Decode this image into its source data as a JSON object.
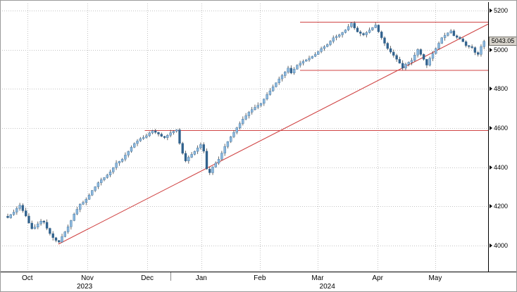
{
  "chart_data": {
    "type": "candlestick",
    "title": "",
    "legend": "none",
    "grid": "dotted",
    "y_axis": {
      "ticks": [
        5200,
        5000,
        4800,
        4600,
        4400,
        4200,
        4000
      ],
      "ylim": [
        3865,
        5250
      ],
      "side": "right"
    },
    "x_axis": {
      "months": [
        {
          "label": "Oct",
          "day": 6.5
        },
        {
          "label": "Nov",
          "day": 26.4
        },
        {
          "label": "Dec",
          "day": 46.3
        },
        {
          "label": "Jan",
          "day": 64.2
        },
        {
          "label": "Feb",
          "day": 83.6
        },
        {
          "label": "Mar",
          "day": 102.8
        },
        {
          "label": "Apr",
          "day": 122.7
        },
        {
          "label": "May",
          "day": 141.8
        }
      ],
      "years": [
        {
          "label": "2023",
          "day": 25.5
        },
        {
          "label": "2024",
          "day": 106
        }
      ],
      "year_separator_day": 54
    },
    "closes": [
      4142,
      4158,
      4171,
      4190,
      4206,
      4178,
      4151,
      4115,
      4086,
      4094,
      4111,
      4125,
      4119,
      4088,
      4061,
      4040,
      4026,
      4018,
      4046,
      4070,
      4096,
      4128,
      4161,
      4185,
      4211,
      4220,
      4236,
      4258,
      4281,
      4300,
      4321,
      4336,
      4347,
      4360,
      4376,
      4398,
      4421,
      4430,
      4441,
      4462,
      4481,
      4502,
      4521,
      4534,
      4546,
      4552,
      4561,
      4575,
      4586,
      4578,
      4569,
      4558,
      4551,
      4563,
      4576,
      4584,
      4591,
      4522,
      4471,
      4432,
      4451,
      4466,
      4481,
      4499,
      4516,
      4482,
      4391,
      4372,
      4401,
      4421,
      4441,
      4472,
      4506,
      4531,
      4556,
      4578,
      4601,
      4623,
      4646,
      4663,
      4681,
      4694,
      4706,
      4716,
      4726,
      4748,
      4771,
      4790,
      4811,
      4831,
      4851,
      4868,
      4886,
      4906,
      4881,
      4901,
      4921,
      4931,
      4941,
      4948,
      4956,
      4966,
      4976,
      4991,
      5006,
      5016,
      5026,
      5043,
      5061,
      5068,
      5076,
      5088,
      5101,
      5118,
      5136,
      5111,
      5091,
      5083,
      5076,
      5088,
      5101,
      5113,
      5126,
      5091,
      5061,
      5033,
      5006,
      4988,
      4971,
      4951,
      4931,
      4906,
      4926,
      4936,
      4946,
      4973,
      5001,
      4976,
      4951,
      4921,
      4956,
      4981,
      5006,
      5033,
      5061,
      5073,
      5086,
      5096,
      5071,
      5063,
      5056,
      5041,
      5021,
      5016,
      5011,
      4986,
      4976,
      5016,
      5043.05
    ],
    "last_price": 5043.05,
    "last_price_label": "5043.05",
    "levels": [
      {
        "name": "resistance-upper",
        "price": 5140,
        "from_day": 97
      },
      {
        "name": "resistance-mid",
        "price": 4895,
        "from_day": 97
      },
      {
        "name": "support-lower",
        "price": 4588,
        "from_day": 45.5
      }
    ],
    "trendline": {
      "name": "ascending-trendline",
      "from": {
        "day": 16.8,
        "price": 4007
      },
      "to": {
        "day": 159.5,
        "price": 5132
      }
    },
    "colors": {
      "up_body": "#8ab7dd",
      "down_body": "#31618c",
      "body_border": "#3d6e99",
      "wick": "#444444",
      "level_line": "#d04545",
      "grid": "#c4c4c4",
      "axis_text": "#000000",
      "badge_bg": "#d8d4cc",
      "badge_border": "#76736c"
    }
  }
}
